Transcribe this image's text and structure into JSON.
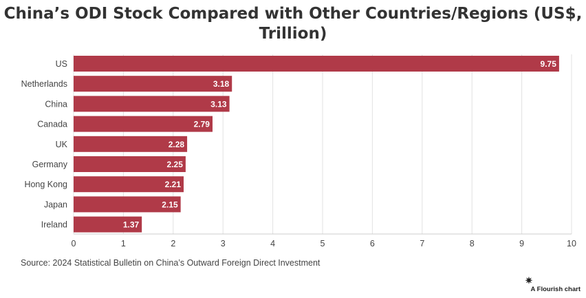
{
  "title_line1": "China’s ODI Stock Compared with Other Countries/Regions (US$,",
  "title_line2": "Trillion)",
  "source": "Source: 2024 Statistical Bulletin on China’s Outward Foreign Direct Investment",
  "credit": "A Flourish chart",
  "credit_icon": "flourish-star-icon",
  "colors": {
    "bar": "#b03a48",
    "grid": "#e2e2e2",
    "text": "#333333"
  },
  "chart_data": {
    "type": "bar",
    "orientation": "horizontal",
    "categories": [
      "US",
      "Netherlands",
      "China",
      "Canada",
      "UK",
      "Germany",
      "Hong Kong",
      "Japan",
      "Ireland"
    ],
    "values": [
      9.75,
      3.18,
      3.13,
      2.79,
      2.28,
      2.25,
      2.21,
      2.15,
      1.37
    ],
    "value_labels": [
      "9.75",
      "3.18",
      "3.13",
      "2.79",
      "2.28",
      "2.25",
      "2.21",
      "2.15",
      "1.37"
    ],
    "xlim": [
      0,
      10
    ],
    "xticks": [
      "0",
      "1",
      "2",
      "3",
      "4",
      "5",
      "6",
      "7",
      "8",
      "9",
      "10"
    ],
    "grid": true
  }
}
